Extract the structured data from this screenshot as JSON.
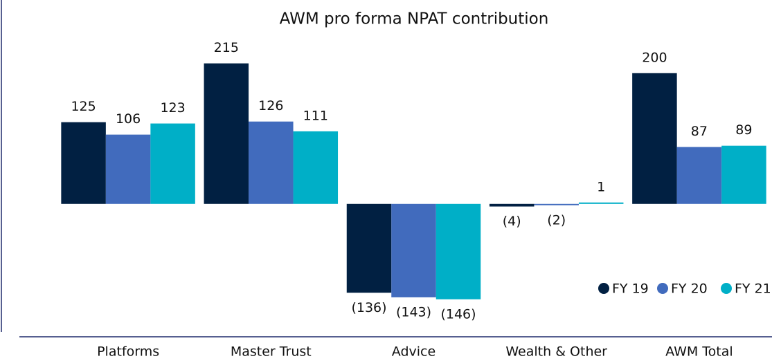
{
  "chart_data": {
    "type": "bar",
    "title": "AWM pro forma NPAT contribution",
    "categories": [
      "Platforms",
      "Master Trust",
      "Advice",
      "Wealth & Other",
      "AWM Total"
    ],
    "series": [
      {
        "name": "FY 19",
        "color": "#012042",
        "values": [
          125,
          215,
          -136,
          -4,
          200
        ],
        "value_labels": [
          "125",
          "215",
          "(136)",
          "(4)",
          "200"
        ]
      },
      {
        "name": "FY 20",
        "color": "#416bbd",
        "values": [
          106,
          126,
          -143,
          -2,
          87
        ],
        "value_labels": [
          "106",
          "126",
          "(143)",
          "(2)",
          "87"
        ]
      },
      {
        "name": "FY 21",
        "color": "#00afc7",
        "values": [
          123,
          111,
          -146,
          1,
          89
        ],
        "value_labels": [
          "123",
          "111",
          "(146)",
          "1",
          "89"
        ]
      }
    ],
    "ylim": [
      -160,
      240
    ],
    "legend": "bottom-right"
  }
}
